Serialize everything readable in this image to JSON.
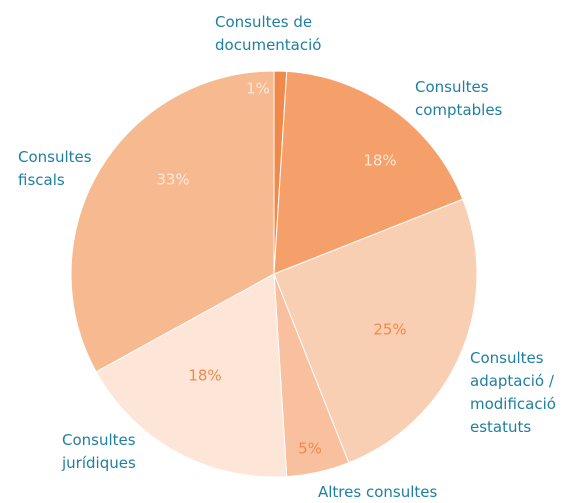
{
  "chart_data": {
    "type": "pie",
    "categories": [
      "Consultes de\ndocumentació",
      "Consultes\ncomptables",
      "Consultes\nadaptació /\nmodificació\nestatuts",
      "Altres consultes",
      "Consultes\njurídiques",
      "Consultes\nfiscals"
    ],
    "values": [
      1,
      18,
      25,
      5,
      18,
      33
    ],
    "value_labels": [
      "1%",
      "18%",
      "25%",
      "5%",
      "18%",
      "33%"
    ],
    "colors": [
      "#f08a4b",
      "#f5a06a",
      "#f9cfb3",
      "#f8c09e",
      "#fde6d8",
      "#f7b990"
    ]
  }
}
